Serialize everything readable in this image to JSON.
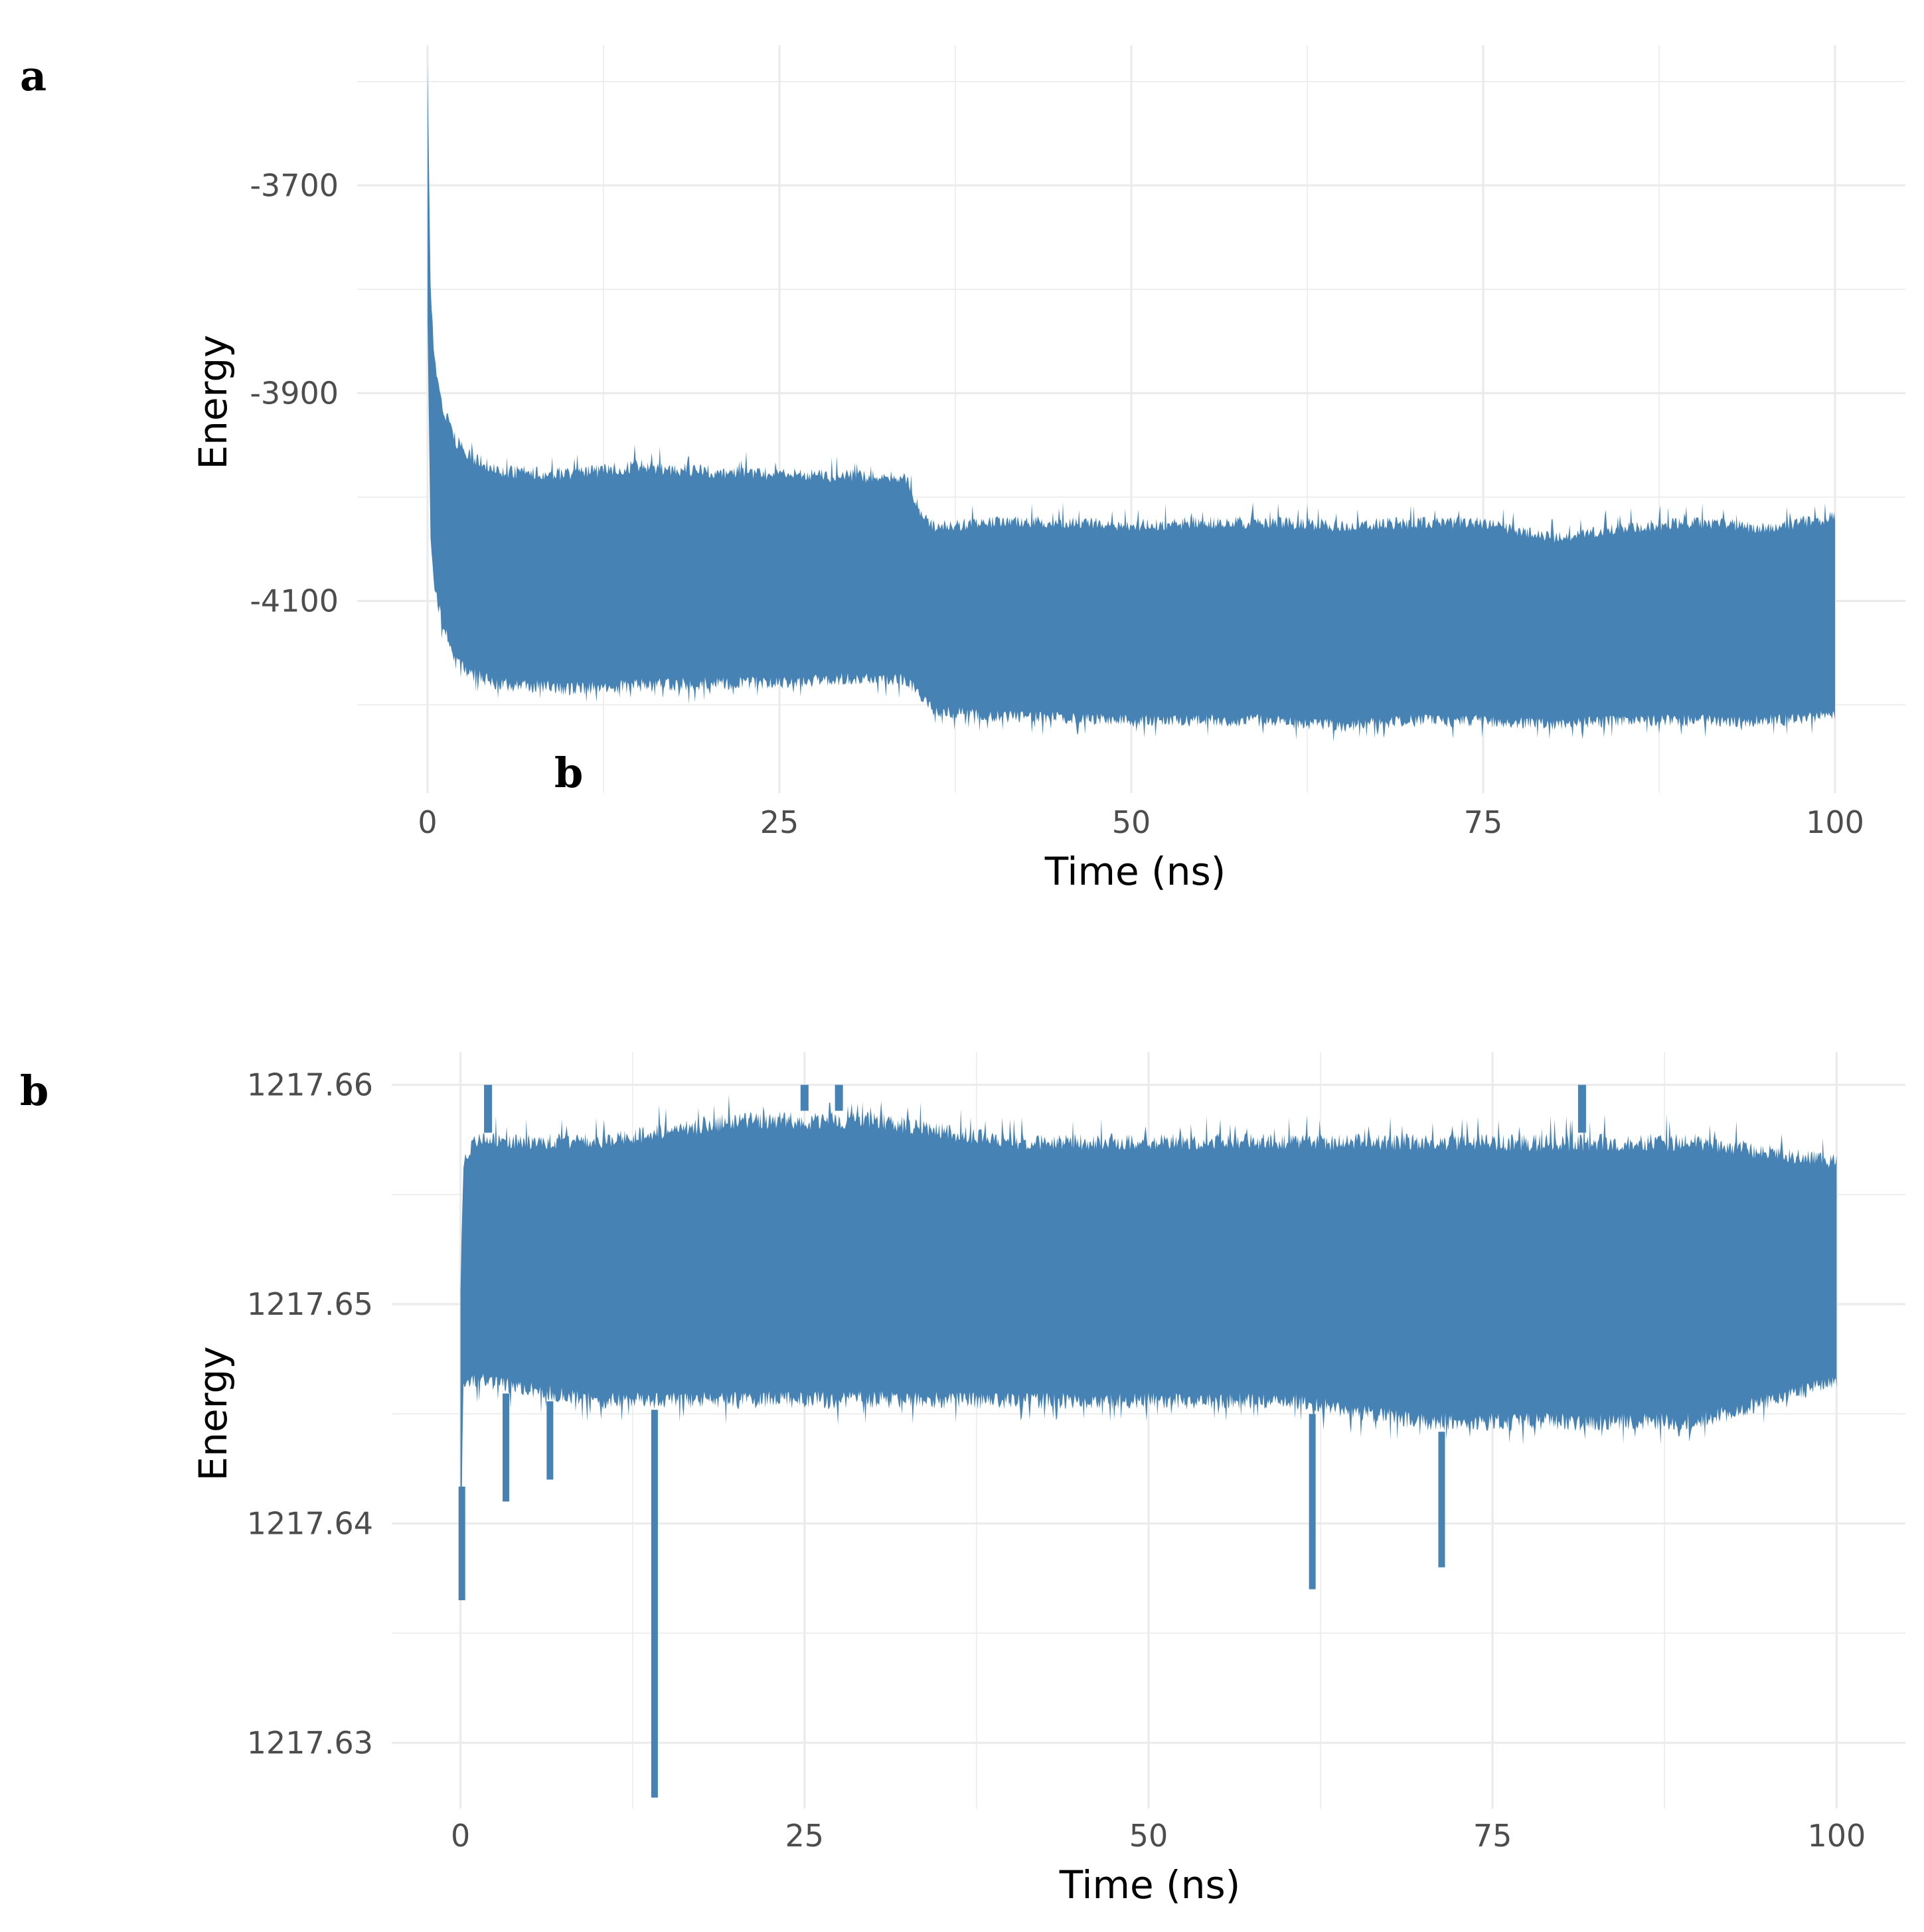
{
  "figure": {
    "panel_labels": [
      "a",
      "b"
    ],
    "stray_label": "b"
  },
  "chart_data": [
    {
      "panel": "a",
      "type": "area",
      "xlabel": "Time (ns)",
      "ylabel": "Energy",
      "xlim": [
        -5,
        105
      ],
      "ylim": [
        -4285,
        -3565
      ],
      "xticks": [
        0,
        25,
        50,
        75,
        100
      ],
      "xtick_labels": [
        "0",
        "25",
        "50",
        "75",
        "100"
      ],
      "yticks": [
        -4100,
        -3900,
        -3700
      ],
      "ytick_labels": [
        "-4100",
        "-3900",
        "-3700"
      ],
      "grid": true,
      "legend": "none",
      "color": "#4682B4",
      "series": [
        {
          "x": [
            0,
            0.2,
            0.5,
            1,
            2,
            3,
            5,
            10,
            15,
            20,
            25,
            30,
            34,
            35,
            36,
            40,
            45,
            50,
            55,
            60,
            65,
            70,
            75,
            80,
            85,
            90,
            95,
            100
          ],
          "y_max": [
            -3575,
            -3780,
            -3860,
            -3900,
            -3935,
            -3950,
            -3965,
            -3968,
            -3960,
            -3965,
            -3968,
            -3970,
            -3972,
            -4005,
            -4020,
            -4015,
            -4015,
            -4018,
            -4015,
            -4015,
            -4018,
            -4015,
            -4015,
            -4030,
            -4020,
            -4015,
            -4020,
            -4010
          ],
          "y_min": [
            -3850,
            -4050,
            -4100,
            -4130,
            -4170,
            -4180,
            -4190,
            -4195,
            -4192,
            -4190,
            -4188,
            -4185,
            -4185,
            -4200,
            -4215,
            -4220,
            -4222,
            -4225,
            -4225,
            -4225,
            -4230,
            -4225,
            -4225,
            -4228,
            -4225,
            -4225,
            -4225,
            -4220
          ]
        }
      ]
    },
    {
      "panel": "b",
      "type": "area",
      "xlabel": "Time (ns)",
      "ylabel": "Energy",
      "xlim": [
        -5,
        105
      ],
      "ylim": [
        1217.627,
        1217.6615
      ],
      "xticks": [
        0,
        25,
        50,
        75,
        100
      ],
      "xtick_labels": [
        "0",
        "25",
        "50",
        "75",
        "100"
      ],
      "yticks": [
        1217.63,
        1217.64,
        1217.65,
        1217.66
      ],
      "ytick_labels": [
        "1217.63",
        "1217.64",
        "1217.65",
        "1217.66"
      ],
      "grid": true,
      "legend": "none",
      "color": "#4682B4",
      "series": [
        {
          "x": [
            0,
            0.2,
            1,
            10,
            20,
            30,
            40,
            50,
            60,
            70,
            80,
            90,
            100
          ],
          "y_max": [
            1217.651,
            1217.657,
            1217.658,
            1217.658,
            1217.659,
            1217.659,
            1217.658,
            1217.658,
            1217.658,
            1217.658,
            1217.658,
            1217.658,
            1217.657
          ],
          "y_min": [
            1217.637,
            1217.646,
            1217.646,
            1217.645,
            1217.645,
            1217.645,
            1217.645,
            1217.645,
            1217.645,
            1217.644,
            1217.644,
            1217.644,
            1217.646
          ]
        }
      ],
      "spikes": {
        "up": [
          [
            2.0,
            1217.66
          ],
          [
            25.0,
            1217.66
          ],
          [
            27.5,
            1217.66
          ],
          [
            81.5,
            1217.66
          ]
        ],
        "down": [
          [
            0.1,
            1217.6365
          ],
          [
            3.3,
            1217.641
          ],
          [
            6.5,
            1217.642
          ],
          [
            14.1,
            1217.6275
          ],
          [
            61.9,
            1217.637
          ],
          [
            71.3,
            1217.638
          ]
        ]
      }
    }
  ]
}
